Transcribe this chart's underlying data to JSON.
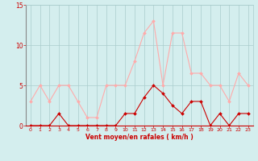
{
  "x": [
    0,
    1,
    2,
    3,
    4,
    5,
    6,
    7,
    8,
    9,
    10,
    11,
    12,
    13,
    14,
    15,
    16,
    17,
    18,
    19,
    20,
    21,
    22,
    23
  ],
  "wind_avg": [
    0,
    0,
    0,
    1.5,
    0,
    0,
    0,
    0,
    0,
    0,
    1.5,
    1.5,
    3.5,
    5,
    4,
    2.5,
    1.5,
    3,
    3,
    0,
    1.5,
    0,
    1.5,
    1.5
  ],
  "wind_gust": [
    3,
    5,
    3,
    5,
    5,
    3,
    1,
    1,
    5,
    5,
    5,
    8,
    11.5,
    13,
    5,
    11.5,
    11.5,
    6.5,
    6.5,
    5,
    5,
    3,
    6.5,
    5
  ],
  "avg_color": "#cc0000",
  "gust_color": "#ffaaaa",
  "bg_color": "#d4eeee",
  "grid_color": "#aacccc",
  "xlabel": "Vent moyen/en rafales ( km/h )",
  "ylim": [
    0,
    15
  ],
  "yticks": [
    0,
    5,
    10,
    15
  ],
  "xticks": [
    0,
    1,
    2,
    3,
    4,
    5,
    6,
    7,
    8,
    9,
    10,
    11,
    12,
    13,
    14,
    15,
    16,
    17,
    18,
    19,
    20,
    21,
    22,
    23
  ]
}
